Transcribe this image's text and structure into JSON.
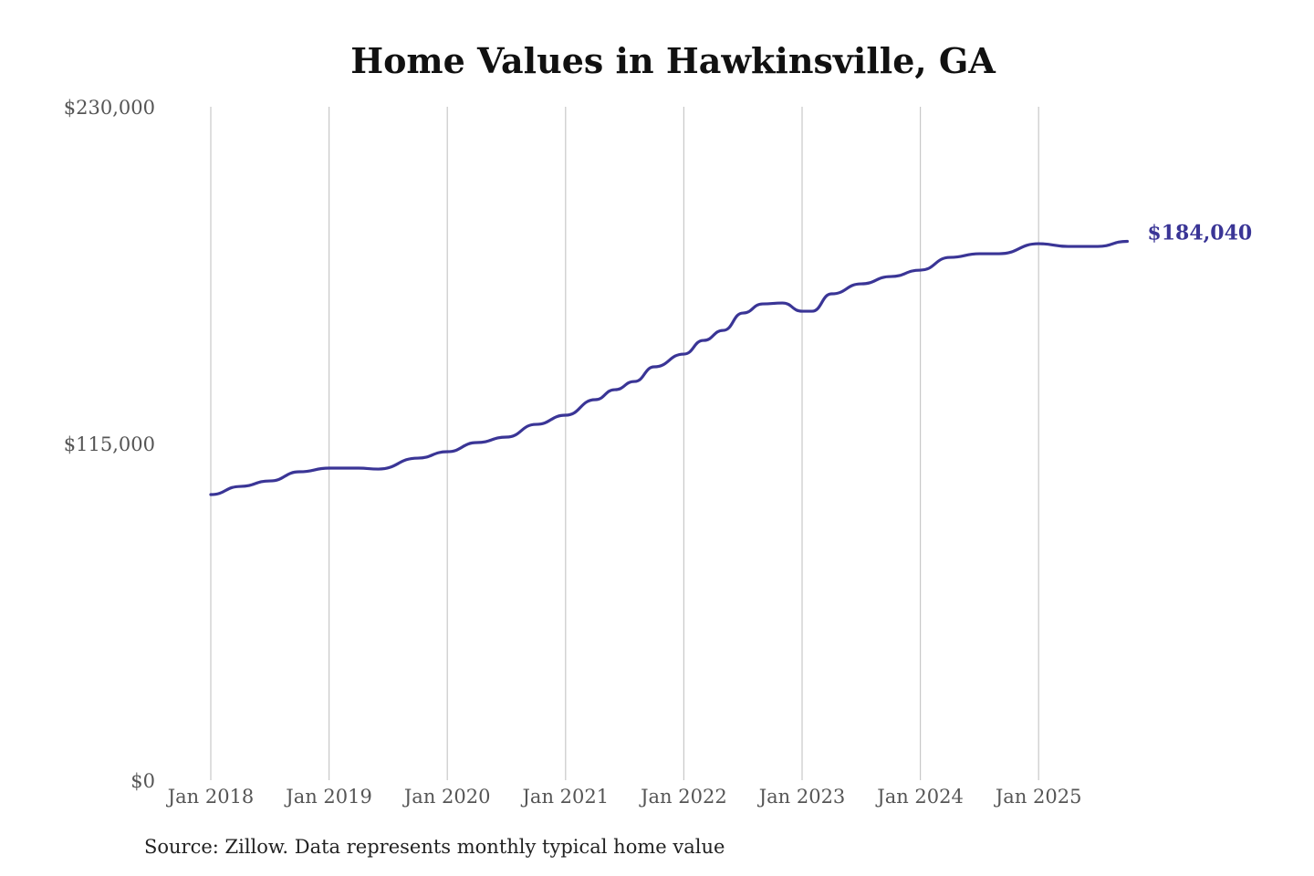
{
  "chart_data": {
    "type": "line",
    "title": "Home Values in Hawkinsville, GA",
    "source": "Source: Zillow. Data represents monthly typical home value",
    "xlabel": "",
    "ylabel": "",
    "ylim": [
      0,
      230000
    ],
    "y_ticks": [
      0,
      115000,
      230000
    ],
    "y_tick_labels": [
      "$0",
      "$115,000",
      "$230,000"
    ],
    "x_tick_labels": [
      "Jan 2018",
      "Jan 2019",
      "Jan 2020",
      "Jan 2021",
      "Jan 2022",
      "Jan 2023",
      "Jan 2024",
      "Jan 2025"
    ],
    "grid": "vertical",
    "line_color": "#3a3596",
    "end_label": "$184,040",
    "series": [
      {
        "x": [
          "2018-01",
          "2018-04",
          "2018-07",
          "2018-10",
          "2019-01",
          "2019-04",
          "2019-06",
          "2019-10",
          "2020-01",
          "2020-04",
          "2020-07",
          "2020-10",
          "2021-01",
          "2021-04",
          "2021-06",
          "2021-08",
          "2021-10",
          "2022-01",
          "2022-03",
          "2022-05",
          "2022-07",
          "2022-09",
          "2022-11",
          "2023-01",
          "2023-02",
          "2023-04",
          "2023-07",
          "2023-10",
          "2024-01",
          "2024-04",
          "2024-07",
          "2024-09",
          "2025-01",
          "2025-04",
          "2025-07",
          "2025-10"
        ],
        "values": [
          97540,
          100340,
          102210,
          105330,
          106580,
          106580,
          106260,
          110000,
          112190,
          115300,
          117170,
          121530,
          124650,
          129950,
          133370,
          136180,
          141170,
          145530,
          150200,
          153630,
          159550,
          162670,
          162980,
          160170,
          160170,
          166100,
          169520,
          172020,
          174200,
          178560,
          179810,
          179810,
          183230,
          182300,
          182300,
          184040
        ]
      }
    ]
  }
}
